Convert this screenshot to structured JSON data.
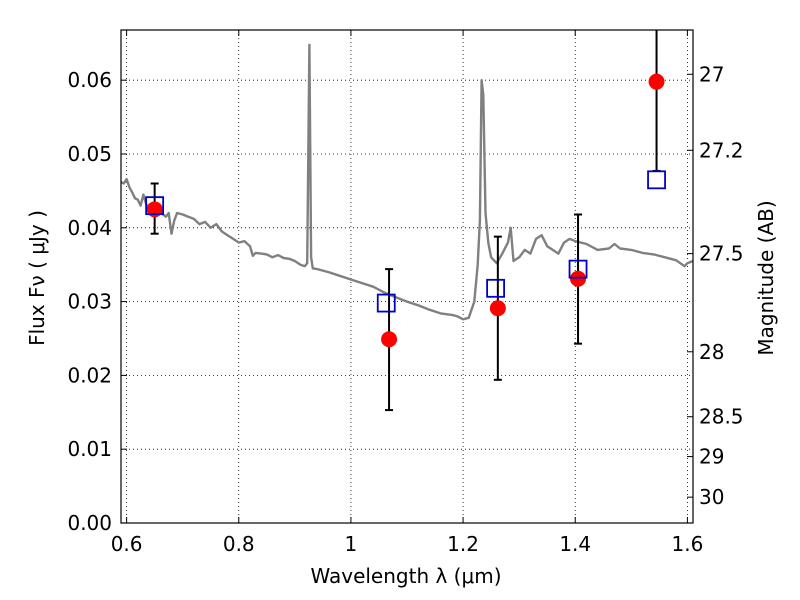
{
  "chart_data": {
    "type": "scatter",
    "title": "",
    "xlabel": "Wavelength  λ (μm)",
    "ylabel": "Flux  Fν  ( μJy )",
    "ylabel_right": "Magnitude (AB)",
    "xlim": [
      0.59,
      1.61
    ],
    "ylim": [
      0.0,
      0.0668
    ],
    "grid": true,
    "grid_style": "dotted",
    "xticks": [
      {
        "value": 0.6,
        "label": "0.6"
      },
      {
        "value": 0.8,
        "label": "0.8"
      },
      {
        "value": 1.0,
        "label": "1"
      },
      {
        "value": 1.2,
        "label": "1.2"
      },
      {
        "value": 1.4,
        "label": "1.4"
      },
      {
        "value": 1.6,
        "label": "1.6"
      }
    ],
    "yticks": [
      {
        "value": 0.0,
        "label": "0.00"
      },
      {
        "value": 0.01,
        "label": "0.01"
      },
      {
        "value": 0.02,
        "label": "0.02"
      },
      {
        "value": 0.03,
        "label": "0.03"
      },
      {
        "value": 0.04,
        "label": "0.04"
      },
      {
        "value": 0.05,
        "label": "0.05"
      },
      {
        "value": 0.06,
        "label": "0.06"
      }
    ],
    "right_ticks": [
      {
        "flux": 0.0608,
        "label": "27"
      },
      {
        "flux": 0.0505,
        "label": "27.2"
      },
      {
        "flux": 0.0365,
        "label": "27.5"
      },
      {
        "flux": 0.0232,
        "label": "28"
      },
      {
        "flux": 0.0144,
        "label": "28.5"
      },
      {
        "flux": 0.009,
        "label": "29"
      },
      {
        "flux": 0.0035,
        "label": "30"
      }
    ],
    "spectrum": {
      "color": "#808080",
      "points": [
        [
          0.59,
          0.0462
        ],
        [
          0.595,
          0.046
        ],
        [
          0.6,
          0.0466
        ],
        [
          0.605,
          0.0455
        ],
        [
          0.61,
          0.0448
        ],
        [
          0.615,
          0.044
        ],
        [
          0.62,
          0.0438
        ],
        [
          0.625,
          0.043
        ],
        [
          0.63,
          0.0445
        ],
        [
          0.635,
          0.0432
        ],
        [
          0.64,
          0.0425
        ],
        [
          0.645,
          0.0428
        ],
        [
          0.65,
          0.0423
        ],
        [
          0.655,
          0.042
        ],
        [
          0.66,
          0.0425
        ],
        [
          0.665,
          0.0418
        ],
        [
          0.67,
          0.0415
        ],
        [
          0.675,
          0.042
        ],
        [
          0.68,
          0.0392
        ],
        [
          0.685,
          0.041
        ],
        [
          0.69,
          0.042
        ],
        [
          0.7,
          0.0418
        ],
        [
          0.71,
          0.0415
        ],
        [
          0.72,
          0.0412
        ],
        [
          0.73,
          0.0405
        ],
        [
          0.74,
          0.0408
        ],
        [
          0.75,
          0.04
        ],
        [
          0.76,
          0.0405
        ],
        [
          0.77,
          0.0395
        ],
        [
          0.78,
          0.039
        ],
        [
          0.79,
          0.0385
        ],
        [
          0.8,
          0.038
        ],
        [
          0.81,
          0.0382
        ],
        [
          0.82,
          0.0375
        ],
        [
          0.825,
          0.0362
        ],
        [
          0.83,
          0.0366
        ],
        [
          0.84,
          0.0365
        ],
        [
          0.85,
          0.0364
        ],
        [
          0.86,
          0.036
        ],
        [
          0.87,
          0.0363
        ],
        [
          0.88,
          0.0359
        ],
        [
          0.89,
          0.0358
        ],
        [
          0.9,
          0.0355
        ],
        [
          0.91,
          0.035
        ],
        [
          0.918,
          0.0348
        ],
        [
          0.922,
          0.0352
        ],
        [
          0.926,
          0.0648
        ],
        [
          0.929,
          0.036
        ],
        [
          0.932,
          0.0345
        ],
        [
          0.94,
          0.0344
        ],
        [
          0.96,
          0.034
        ],
        [
          0.98,
          0.0335
        ],
        [
          1.0,
          0.033
        ],
        [
          1.02,
          0.0325
        ],
        [
          1.04,
          0.032
        ],
        [
          1.06,
          0.0312
        ],
        [
          1.08,
          0.0306
        ],
        [
          1.1,
          0.03
        ],
        [
          1.12,
          0.0295
        ],
        [
          1.14,
          0.0289
        ],
        [
          1.16,
          0.0284
        ],
        [
          1.18,
          0.0282
        ],
        [
          1.19,
          0.028
        ],
        [
          1.2,
          0.0276
        ],
        [
          1.21,
          0.0278
        ],
        [
          1.22,
          0.03
        ],
        [
          1.226,
          0.035
        ],
        [
          1.23,
          0.041
        ],
        [
          1.233,
          0.06
        ],
        [
          1.236,
          0.058
        ],
        [
          1.24,
          0.042
        ],
        [
          1.245,
          0.038
        ],
        [
          1.25,
          0.036
        ],
        [
          1.26,
          0.0352
        ],
        [
          1.27,
          0.0365
        ],
        [
          1.28,
          0.038
        ],
        [
          1.285,
          0.04
        ],
        [
          1.29,
          0.0355
        ],
        [
          1.3,
          0.036
        ],
        [
          1.31,
          0.037
        ],
        [
          1.32,
          0.0365
        ],
        [
          1.33,
          0.0385
        ],
        [
          1.34,
          0.039
        ],
        [
          1.35,
          0.0375
        ],
        [
          1.36,
          0.037
        ],
        [
          1.37,
          0.0365
        ],
        [
          1.38,
          0.038
        ],
        [
          1.39,
          0.0385
        ],
        [
          1.4,
          0.0382
        ],
        [
          1.42,
          0.0378
        ],
        [
          1.44,
          0.037
        ],
        [
          1.46,
          0.0372
        ],
        [
          1.47,
          0.0378
        ],
        [
          1.48,
          0.0372
        ],
        [
          1.5,
          0.037
        ],
        [
          1.52,
          0.0366
        ],
        [
          1.54,
          0.0364
        ],
        [
          1.56,
          0.036
        ],
        [
          1.58,
          0.0356
        ],
        [
          1.595,
          0.0348
        ],
        [
          1.6,
          0.0352
        ],
        [
          1.61,
          0.0355
        ]
      ]
    },
    "observed": {
      "color": "#ff0000",
      "points": [
        {
          "x": 0.65,
          "y": 0.0425,
          "yerr_low": 0.0392,
          "yerr_high": 0.046
        },
        {
          "x": 1.068,
          "y": 0.0249,
          "yerr_low": 0.0153,
          "yerr_high": 0.0344
        },
        {
          "x": 1.262,
          "y": 0.0291,
          "yerr_low": 0.0194,
          "yerr_high": 0.0388
        },
        {
          "x": 1.405,
          "y": 0.0331,
          "yerr_low": 0.0243,
          "yerr_high": 0.0418
        },
        {
          "x": 1.545,
          "y": 0.0598,
          "yerr_low": 0.0477,
          "yerr_high": 0.0668
        }
      ]
    },
    "model": {
      "color": "#0000cc",
      "points": [
        {
          "x": 0.65,
          "y": 0.043
        },
        {
          "x": 1.063,
          "y": 0.0298
        },
        {
          "x": 1.258,
          "y": 0.0318
        },
        {
          "x": 1.405,
          "y": 0.0344
        },
        {
          "x": 1.545,
          "y": 0.0465
        }
      ]
    }
  }
}
